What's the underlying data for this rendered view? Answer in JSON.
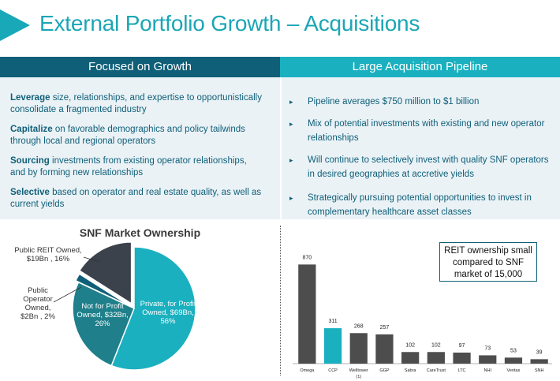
{
  "title": "External Portfolio Growth – Acquisitions",
  "left_header": "Focused on Growth",
  "right_header": "Large Acquisition Pipeline",
  "left_items": [
    {
      "bold": "Leverage",
      "text": " size, relationships, and expertise to opportunistically consolidate a fragmented industry"
    },
    {
      "bold": "Capitalize",
      "text": " on favorable demographics and policy tailwinds through local and regional operators"
    },
    {
      "bold": "Sourcing",
      "text": " investments from existing operator relationships, and by forming new relationships"
    },
    {
      "bold": "Selective",
      "text": " based on operator and real estate quality, as well as current yields"
    }
  ],
  "right_items": [
    "Pipeline averages $750 million to $1 billion",
    "Mix of potential investments with existing and new operator relationships",
    "Will continue to selectively invest with quality SNF operators in desired geographies at accretive yields",
    "Strategically pursuing potential opportunities to invest in complementary healthcare asset classes"
  ],
  "bullet_glyph": "▸",
  "callout": "REIT ownership small compared to SNF market of 15,000",
  "colors": {
    "accent": "#1aa6b6",
    "dark_teal": "#0f5f78",
    "bar_dark": "#4d4d4d",
    "bar_highlight": "#1ab0bf"
  },
  "chart_data": [
    {
      "type": "pie",
      "title": "SNF Market Ownership",
      "slices": [
        {
          "label": "Private, for Profit Owned, $69Bn, 56%",
          "value": 56,
          "color": "#1ab0bf"
        },
        {
          "label": "Not for Profit Owned, $32Bn, 26%",
          "value": 26,
          "color": "#1f7f8a"
        },
        {
          "label": "Public Operator Owned, $2Bn , 2%",
          "value": 2,
          "color": "#0f5f78"
        },
        {
          "label": "Public REIT Owned, $19Bn , 16%",
          "value": 16,
          "color": "#3b424b"
        }
      ]
    },
    {
      "type": "bar",
      "title": "",
      "categories": [
        "Omega",
        "CCP",
        "Welltower (1)",
        "GGP",
        "Sabra",
        "CareTrust",
        "LTC",
        "NHI",
        "Ventas",
        "SNH"
      ],
      "values": [
        870,
        311,
        268,
        257,
        102,
        102,
        97,
        73,
        53,
        39
      ],
      "highlight_index": 1,
      "ylim": [
        0,
        900
      ],
      "grid": false
    }
  ]
}
